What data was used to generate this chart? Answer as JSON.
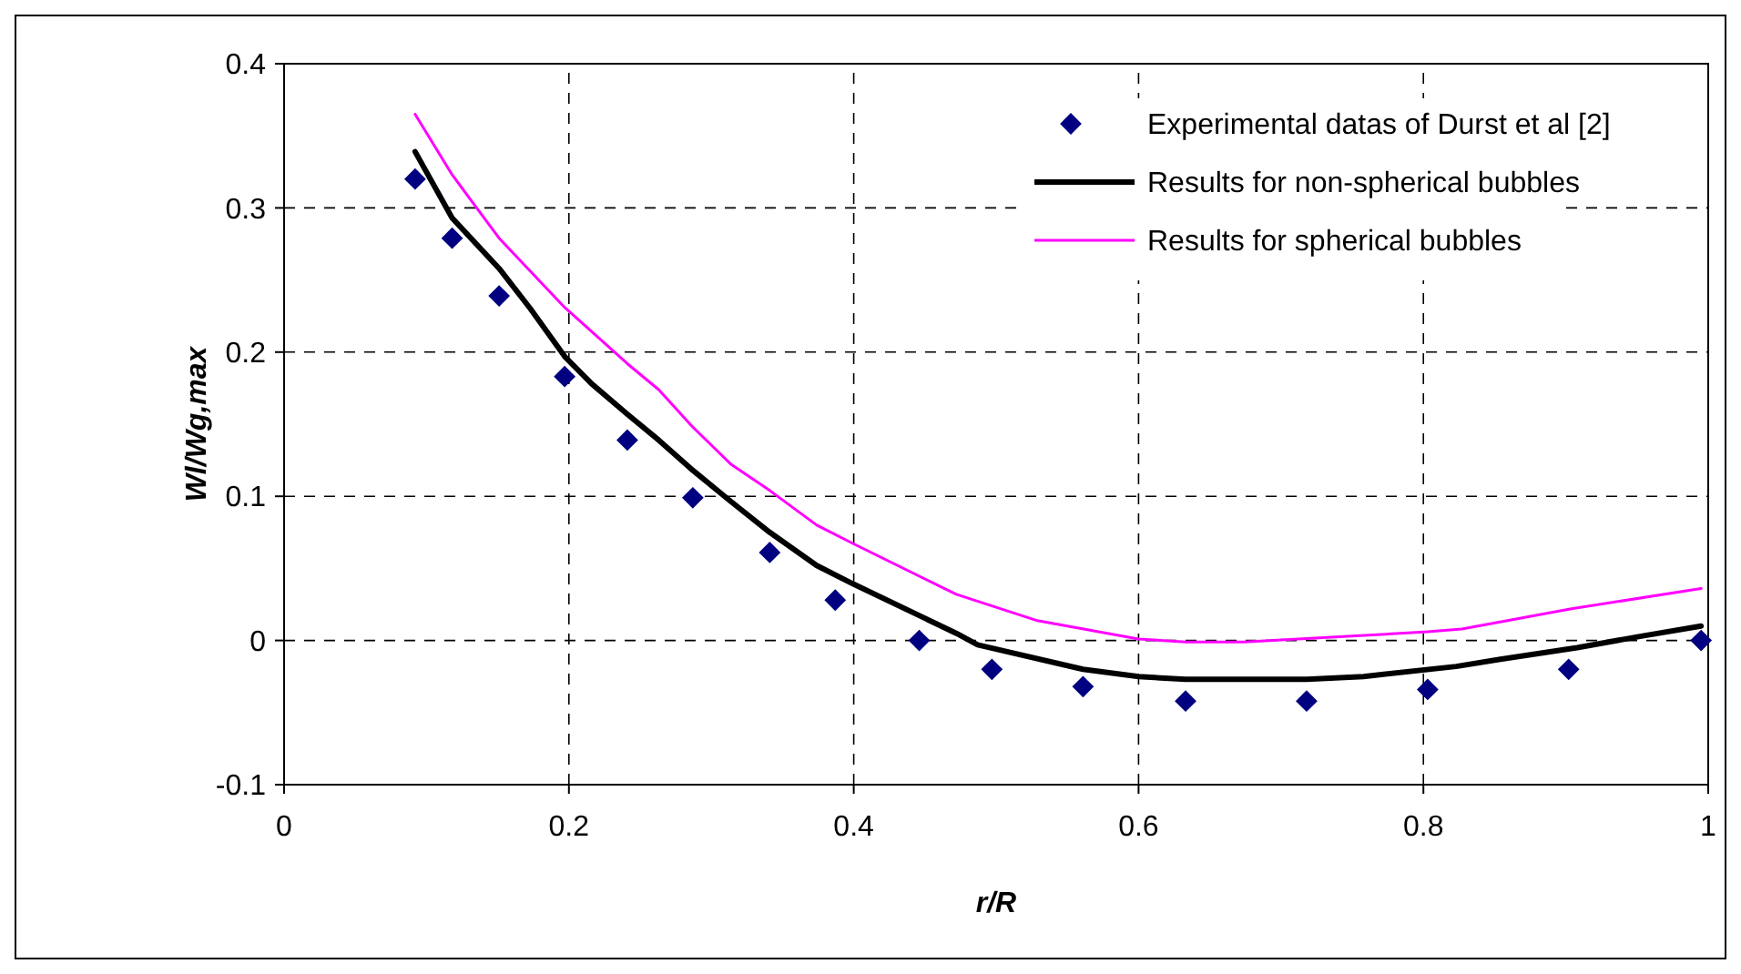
{
  "chart_data": {
    "type": "line",
    "xlabel": "r/R",
    "ylabel": "Wl/Wg,max",
    "xlim": [
      0,
      1
    ],
    "xticks": [
      0,
      0.2,
      0.4,
      0.6,
      0.8,
      1
    ],
    "ylim": [
      -0.1,
      0.4
    ],
    "yticks": [
      -0.1,
      0,
      0.1,
      0.2,
      0.3,
      0.4
    ],
    "grid": true,
    "legend": "top right",
    "series": [
      {
        "name": "Experimental datas of Durst et al [2]",
        "type": "scatter",
        "marker": "diamond",
        "color": "#000080",
        "x": [
          0.092,
          0.118,
          0.151,
          0.197,
          0.241,
          0.287,
          0.341,
          0.387,
          0.446,
          0.497,
          0.561,
          0.633,
          0.718,
          0.803,
          0.902,
          0.995
        ],
        "values": [
          0.32,
          0.279,
          0.239,
          0.183,
          0.139,
          0.099,
          0.061,
          0.028,
          0,
          -0.02,
          -0.032,
          -0.042,
          -0.042,
          -0.034,
          -0.02,
          0
        ]
      },
      {
        "name": "Results for non-spherical bubbles",
        "color": "#000000",
        "x": [
          0.092,
          0.118,
          0.151,
          0.173,
          0.197,
          0.216,
          0.241,
          0.263,
          0.287,
          0.313,
          0.341,
          0.374,
          0.4,
          0.472,
          0.487,
          0.561,
          0.6,
          0.633,
          0.718,
          0.758,
          0.823,
          0.854,
          0.908,
          0.953,
          0.995
        ],
        "values": [
          0.339,
          0.293,
          0.258,
          0.23,
          0.197,
          0.178,
          0.157,
          0.139,
          0.118,
          0.097,
          0.075,
          0.052,
          0.039,
          0.005,
          -0.003,
          -0.02,
          -0.025,
          -0.027,
          -0.027,
          -0.025,
          -0.018,
          -0.013,
          -0.005,
          0.003,
          0.01
        ]
      },
      {
        "name": "Results for spherical bubbles",
        "color": "#ff00ff",
        "x": [
          0.092,
          0.118,
          0.151,
          0.197,
          0.241,
          0.263,
          0.287,
          0.314,
          0.341,
          0.374,
          0.4,
          0.472,
          0.528,
          0.6,
          0.633,
          0.674,
          0.803,
          0.827,
          0.904,
          0.995
        ],
        "values": [
          0.365,
          0.323,
          0.279,
          0.231,
          0.192,
          0.174,
          0.148,
          0.122,
          0.104,
          0.08,
          0.067,
          0.032,
          0.014,
          0.001,
          -0.001,
          -0.001,
          0.006,
          0.008,
          0.022,
          0.036
        ]
      }
    ]
  }
}
